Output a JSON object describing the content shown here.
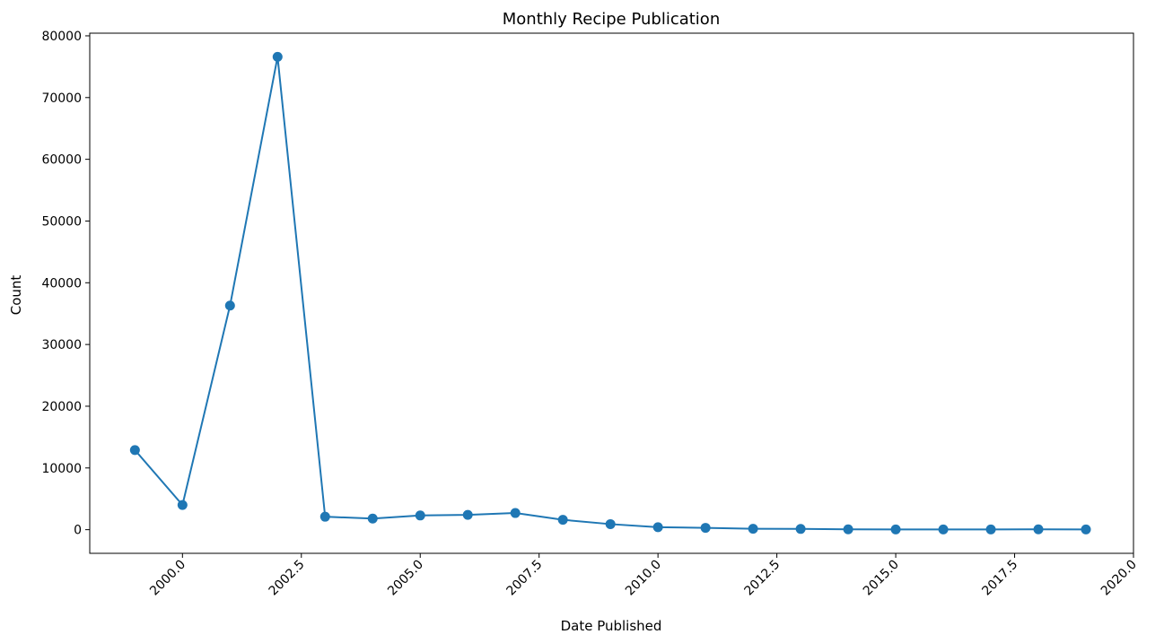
{
  "chart_data": {
    "type": "line",
    "title": "Monthly Recipe Publication",
    "xlabel": "Date Published",
    "ylabel": "Count",
    "xlim": [
      1998.05,
      2020.0
    ],
    "ylim": [
      -3830,
      80430
    ],
    "x_ticks": [
      2000.0,
      2002.5,
      2005.0,
      2007.5,
      2010.0,
      2012.5,
      2015.0,
      2017.5,
      2020.0
    ],
    "x_tick_labels": [
      "2000.0",
      "2002.5",
      "2005.0",
      "2007.5",
      "2010.0",
      "2012.5",
      "2015.0",
      "2017.5",
      "2020.0"
    ],
    "y_ticks": [
      0,
      10000,
      20000,
      30000,
      40000,
      50000,
      60000,
      70000,
      80000
    ],
    "y_tick_labels": [
      "0",
      "10000",
      "20000",
      "30000",
      "40000",
      "50000",
      "60000",
      "70000",
      "80000"
    ],
    "grid": false,
    "color": "#1f77b4",
    "series": [
      {
        "x": [
          1999,
          2000,
          2001,
          2002,
          2003,
          2004,
          2005,
          2006,
          2007,
          2008,
          2009,
          2010,
          2011,
          2012,
          2013,
          2014,
          2015,
          2016,
          2017,
          2018,
          2019
        ],
        "values": [
          12900,
          4000,
          36300,
          76600,
          2100,
          1800,
          2300,
          2400,
          2700,
          1600,
          900,
          400,
          300,
          150,
          120,
          50,
          40,
          40,
          40,
          50,
          40
        ]
      }
    ]
  }
}
